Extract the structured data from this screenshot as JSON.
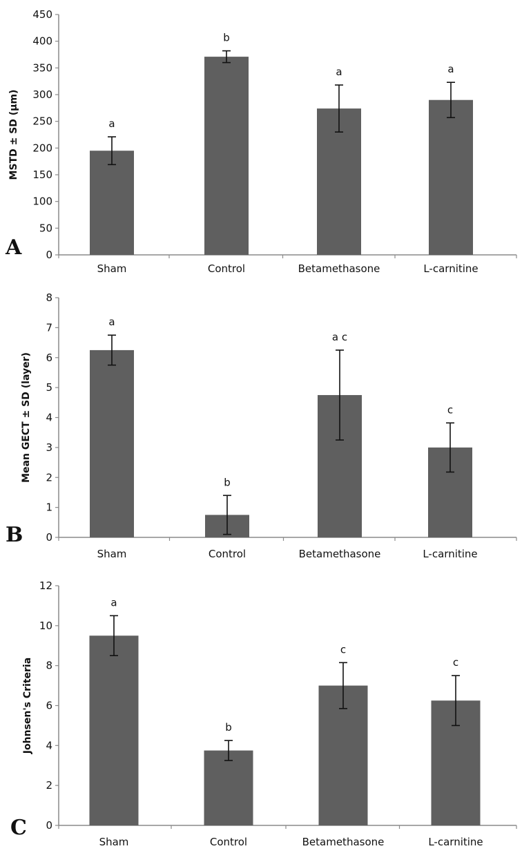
{
  "figure": {
    "panels": [
      "A",
      "B",
      "C"
    ]
  },
  "chart_data": [
    {
      "type": "bar",
      "panel_label": "A",
      "title": "",
      "xlabel": "",
      "ylabel": "MSTD ± SD (μm)",
      "categories": [
        "Sham",
        "Control",
        "Betamethasone",
        "L-carnitine"
      ],
      "values": [
        195,
        371,
        274,
        290
      ],
      "errors": [
        26,
        11,
        44,
        33
      ],
      "significance": [
        "a",
        "b",
        "a",
        "a"
      ],
      "ylim": [
        0,
        450
      ],
      "yticks": [
        0,
        50,
        100,
        150,
        200,
        250,
        300,
        350,
        400,
        450
      ],
      "bar_color": "#5f5f5f",
      "grid": false
    },
    {
      "type": "bar",
      "panel_label": "B",
      "title": "",
      "xlabel": "",
      "ylabel": "Mean GECT ± SD (layer)",
      "categories": [
        "Sham",
        "Control",
        "Betamethasone",
        "L-carnitine"
      ],
      "values": [
        6.25,
        0.75,
        4.75,
        3.0
      ],
      "errors": [
        0.5,
        0.65,
        1.5,
        0.82
      ],
      "significance": [
        "a",
        "b",
        "a c",
        "c"
      ],
      "ylim": [
        0,
        8
      ],
      "yticks": [
        0,
        1,
        2,
        3,
        4,
        5,
        6,
        7,
        8
      ],
      "bar_color": "#5f5f5f",
      "grid": false
    },
    {
      "type": "bar",
      "panel_label": "C",
      "title": "",
      "xlabel": "",
      "ylabel": "Johnsen's Criteria",
      "categories": [
        "Sham",
        "Control",
        "Betamethasone",
        "L-carnitine"
      ],
      "values": [
        9.5,
        3.75,
        7.0,
        6.25
      ],
      "errors": [
        1.0,
        0.5,
        1.15,
        1.25
      ],
      "significance": [
        "a",
        "b",
        "c",
        "c"
      ],
      "ylim": [
        0,
        12
      ],
      "yticks": [
        0,
        2,
        4,
        6,
        8,
        10,
        12
      ],
      "bar_color": "#5f5f5f",
      "grid": false
    }
  ]
}
